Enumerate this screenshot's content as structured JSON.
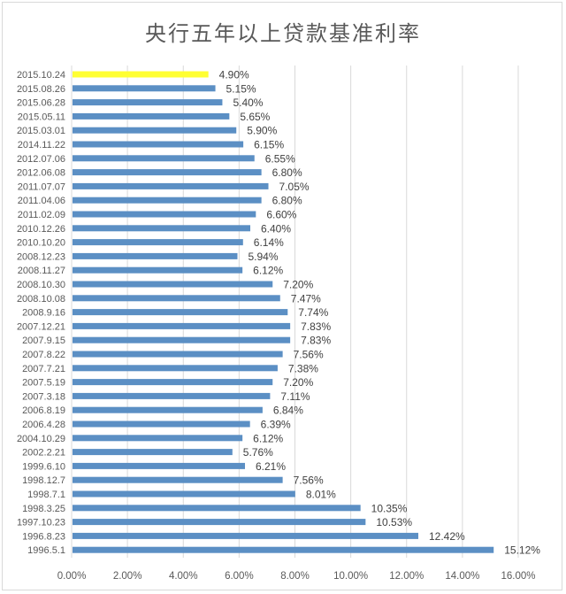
{
  "chart_data": {
    "type": "bar",
    "orientation": "horizontal",
    "title": "央行五年以上贷款基准利率",
    "xlabel": "",
    "ylabel": "",
    "xlim": [
      0,
      16
    ],
    "x_ticks": [
      "0.00%",
      "2.00%",
      "4.00%",
      "6.00%",
      "8.00%",
      "10.00%",
      "12.00%",
      "14.00%",
      "16.00%"
    ],
    "grid": true,
    "legend": "none",
    "colors": {
      "bar": "#5b8fc4",
      "highlight": "#ffff33",
      "grid": "#d9d9d9"
    },
    "highlighted_category": "2015.10.24",
    "categories": [
      "2015.10.24",
      "2015.08.26",
      "2015.06.28",
      "2015.05.11",
      "2015.03.01",
      "2014.11.22",
      "2012.07.06",
      "2012.06.08",
      "2011.07.07",
      "2011.04.06",
      "2011.02.09",
      "2010.12.26",
      "2010.10.20",
      "2008.12.23",
      "2008.11.27",
      "2008.10.30",
      "2008.10.08",
      "2008.9.16",
      "2007.12.21",
      "2007.9.15",
      "2007.8.22",
      "2007.7.21",
      "2007.5.19",
      "2007.3.18",
      "2006.8.19",
      "2006.4.28",
      "2004.10.29",
      "2002.2.21",
      "1999.6.10",
      "1998.12.7",
      "1998.7.1",
      "1998.3.25",
      "1997.10.23",
      "1996.8.23",
      "1996.5.1"
    ],
    "values": [
      4.9,
      5.15,
      5.4,
      5.65,
      5.9,
      6.15,
      6.55,
      6.8,
      7.05,
      6.8,
      6.6,
      6.4,
      6.14,
      5.94,
      6.12,
      7.2,
      7.47,
      7.74,
      7.83,
      7.83,
      7.56,
      7.38,
      7.2,
      7.11,
      6.84,
      6.39,
      6.12,
      5.76,
      6.21,
      7.56,
      8.01,
      10.35,
      10.53,
      12.42,
      15.12
    ],
    "value_labels": [
      "4.90%",
      "5.15%",
      "5.40%",
      "5.65%",
      "5.90%",
      "6.15%",
      "6.55%",
      "6.80%",
      "7.05%",
      "6.80%",
      "6.60%",
      "6.40%",
      "6.14%",
      "5.94%",
      "6.12%",
      "7.20%",
      "7.47%",
      "7.74%",
      "7.83%",
      "7.83%",
      "7.56%",
      "7.38%",
      "7.20%",
      "7.11%",
      "6.84%",
      "6.39%",
      "6.12%",
      "5.76%",
      "6.21%",
      "7.56%",
      "8.01%",
      "10.35%",
      "10.53%",
      "12.42%",
      "15.12%"
    ]
  }
}
